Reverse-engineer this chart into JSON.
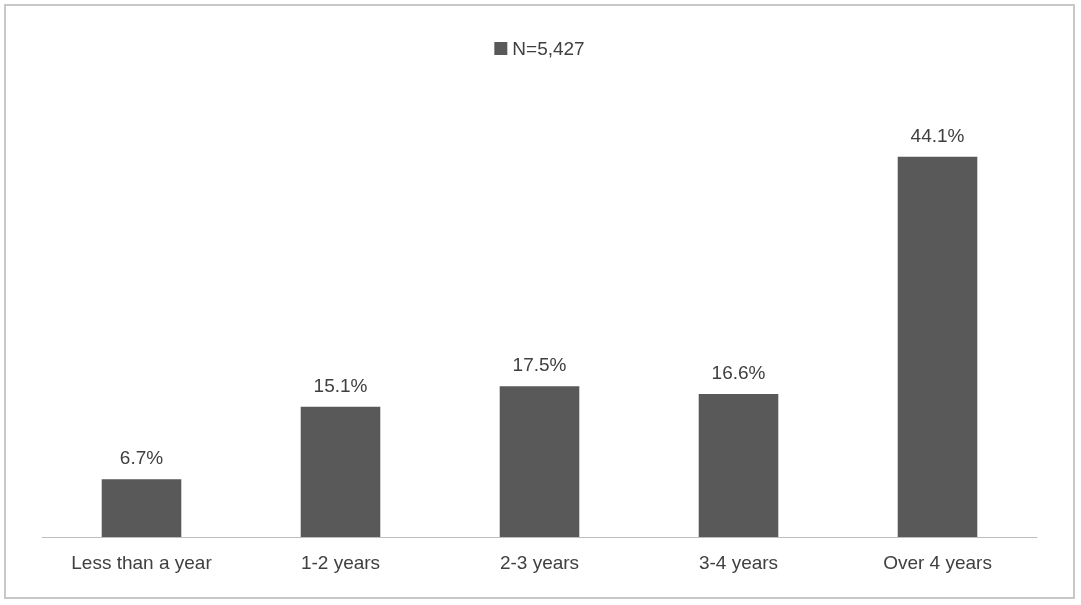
{
  "chart_data": {
    "type": "bar",
    "categories": [
      "Less than a year",
      "1-2 years",
      "2-3 years",
      "3-4 years",
      "Over 4 years"
    ],
    "series": [
      {
        "name": "N=5,427",
        "color": "#595959",
        "values": [
          6.7,
          15.1,
          17.5,
          16.6,
          44.1
        ],
        "value_labels": [
          "6.7%",
          "15.1%",
          "17.5%",
          "16.6%",
          "44.1%"
        ]
      }
    ],
    "legend": "top"
  }
}
